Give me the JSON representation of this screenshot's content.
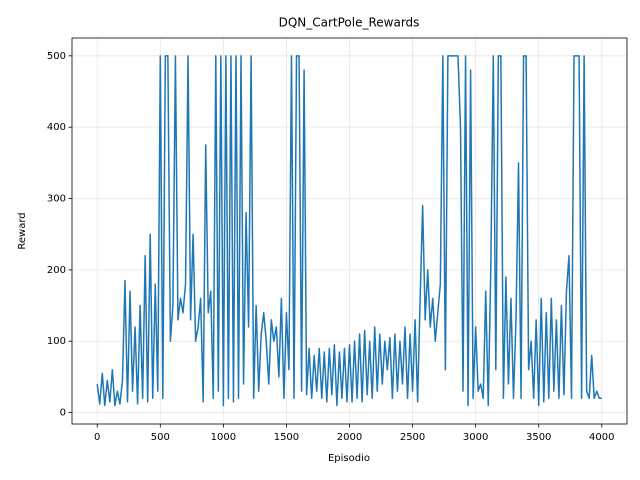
{
  "chart_data": {
    "type": "line",
    "title": "DQN_CartPole_Rewards",
    "x_label": "Episodio",
    "y_label": "Reward",
    "color": "#1f77b4",
    "grid": true,
    "xlim": [
      -200,
      4200
    ],
    "xticks": [
      0,
      500,
      1000,
      1500,
      2000,
      2500,
      3000,
      3500,
      4000
    ],
    "ylim": [
      -16,
      525
    ],
    "yticks": [
      0,
      100,
      200,
      300,
      400,
      500
    ],
    "x": [
      0,
      20,
      40,
      60,
      80,
      100,
      120,
      140,
      160,
      180,
      200,
      220,
      240,
      260,
      280,
      300,
      320,
      340,
      360,
      380,
      400,
      420,
      440,
      460,
      480,
      500,
      520,
      540,
      560,
      580,
      600,
      620,
      640,
      660,
      680,
      700,
      720,
      740,
      760,
      780,
      800,
      820,
      840,
      860,
      880,
      900,
      920,
      940,
      960,
      980,
      1000,
      1020,
      1040,
      1060,
      1080,
      1100,
      1120,
      1140,
      1160,
      1180,
      1200,
      1220,
      1240,
      1260,
      1280,
      1300,
      1320,
      1340,
      1360,
      1380,
      1400,
      1420,
      1440,
      1460,
      1480,
      1500,
      1520,
      1540,
      1560,
      1580,
      1600,
      1620,
      1640,
      1660,
      1680,
      1700,
      1720,
      1740,
      1760,
      1780,
      1800,
      1820,
      1840,
      1860,
      1880,
      1900,
      1920,
      1940,
      1960,
      1980,
      2000,
      2020,
      2040,
      2060,
      2080,
      2100,
      2120,
      2140,
      2160,
      2180,
      2200,
      2220,
      2240,
      2260,
      2280,
      2300,
      2320,
      2340,
      2360,
      2380,
      2400,
      2420,
      2440,
      2460,
      2480,
      2500,
      2520,
      2540,
      2560,
      2580,
      2600,
      2620,
      2640,
      2660,
      2680,
      2700,
      2720,
      2740,
      2760,
      2780,
      2800,
      2820,
      2840,
      2860,
      2880,
      2900,
      2920,
      2940,
      2960,
      2980,
      3000,
      3020,
      3040,
      3060,
      3080,
      3100,
      3120,
      3140,
      3160,
      3180,
      3200,
      3220,
      3240,
      3260,
      3280,
      3300,
      3320,
      3340,
      3360,
      3380,
      3400,
      3420,
      3440,
      3460,
      3480,
      3500,
      3520,
      3540,
      3560,
      3580,
      3600,
      3620,
      3640,
      3660,
      3680,
      3700,
      3720,
      3740,
      3760,
      3780,
      3800,
      3820,
      3840,
      3860,
      3880,
      3900,
      3920,
      3940,
      3960,
      3980,
      4000
    ],
    "values": [
      40,
      12,
      55,
      10,
      45,
      15,
      60,
      10,
      30,
      12,
      45,
      185,
      15,
      170,
      30,
      120,
      12,
      150,
      20,
      220,
      15,
      250,
      20,
      180,
      30,
      500,
      20,
      500,
      500,
      100,
      150,
      500,
      130,
      160,
      140,
      180,
      500,
      130,
      250,
      100,
      120,
      160,
      15,
      375,
      140,
      170,
      20,
      500,
      30,
      500,
      10,
      500,
      20,
      500,
      15,
      500,
      20,
      500,
      40,
      280,
      120,
      500,
      20,
      150,
      30,
      110,
      140,
      100,
      40,
      130,
      100,
      120,
      50,
      160,
      20,
      140,
      60,
      500,
      20,
      500,
      500,
      30,
      480,
      25,
      90,
      20,
      80,
      30,
      90,
      20,
      85,
      15,
      90,
      25,
      95,
      10,
      85,
      20,
      90,
      15,
      95,
      15,
      100,
      20,
      110,
      15,
      115,
      25,
      100,
      20,
      120,
      30,
      110,
      40,
      100,
      60,
      105,
      20,
      110,
      30,
      100,
      40,
      120,
      20,
      110,
      30,
      130,
      15,
      160,
      290,
      130,
      200,
      120,
      160,
      100,
      140,
      180,
      500,
      60,
      500,
      500,
      500,
      500,
      500,
      400,
      30,
      500,
      10,
      480,
      20,
      120,
      30,
      40,
      20,
      170,
      10,
      200,
      500,
      60,
      500,
      500,
      20,
      190,
      40,
      160,
      20,
      130,
      350,
      20,
      500,
      500,
      60,
      100,
      20,
      130,
      10,
      160,
      15,
      140,
      20,
      160,
      30,
      130,
      20,
      150,
      25,
      170,
      220,
      20,
      500,
      500,
      500,
      20,
      500,
      30,
      20,
      80,
      20,
      30,
      20,
      20
    ]
  }
}
